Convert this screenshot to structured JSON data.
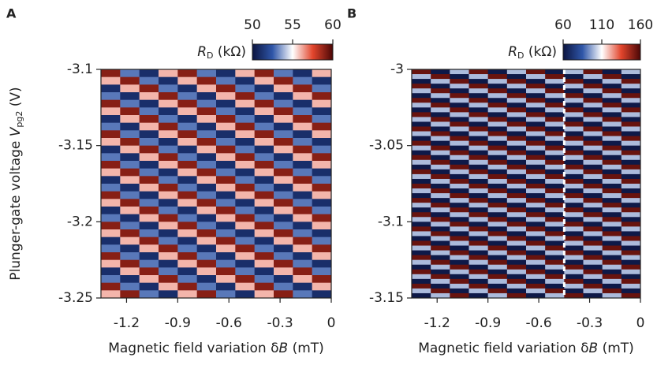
{
  "chart_data": [
    {
      "type": "heatmap",
      "panel": "A",
      "xlabel": "Magnetic field variation δ",
      "xlabel_italic": "B",
      "xlabel_unit": " (mT)",
      "ylabel": "Plunger-gate voltage ",
      "ylabel_italic": "V",
      "ylabel_sub": "pg2",
      "ylabel_unit": " (V)",
      "colorbar_label": "R",
      "colorbar_label_sub": "D",
      "colorbar_unit": " (kΩ)",
      "xlim": [
        -1.35,
        0
      ],
      "xticks": [
        -1.2,
        -0.9,
        -0.6,
        -0.3,
        0
      ],
      "ylim": [
        -3.25,
        -3.1
      ],
      "yticks": [
        -3.1,
        -3.15,
        -3.2,
        -3.25
      ],
      "clim": [
        50,
        60
      ],
      "cticks": [
        50,
        55,
        60
      ],
      "colormap": [
        "#0b1440",
        "#2f56a8",
        "#ffffff",
        "#e2452c",
        "#4a0606"
      ],
      "z": [
        [
          59,
          53,
          51,
          56,
          59,
          53,
          51,
          56,
          59,
          53,
          51,
          56
        ],
        [
          56,
          59,
          53,
          51,
          56,
          59,
          53,
          51,
          56,
          59,
          53,
          51
        ],
        [
          51,
          56,
          59,
          53,
          51,
          56,
          59,
          53,
          51,
          56,
          59,
          53
        ],
        [
          53,
          51,
          56,
          59,
          53,
          51,
          56,
          59,
          53,
          51,
          56,
          59
        ],
        [
          59,
          53,
          51,
          56,
          59,
          53,
          51,
          56,
          59,
          53,
          51,
          56
        ],
        [
          56,
          59,
          53,
          51,
          56,
          59,
          53,
          51,
          56,
          59,
          53,
          51
        ],
        [
          51,
          56,
          59,
          53,
          51,
          56,
          59,
          53,
          51,
          56,
          59,
          53
        ],
        [
          53,
          51,
          56,
          59,
          53,
          51,
          56,
          59,
          53,
          51,
          56,
          59
        ],
        [
          59,
          53,
          51,
          56,
          59,
          53,
          51,
          56,
          59,
          53,
          51,
          56
        ],
        [
          56,
          59,
          53,
          51,
          56,
          59,
          53,
          51,
          56,
          59,
          53,
          51
        ],
        [
          51,
          56,
          59,
          53,
          51,
          56,
          59,
          53,
          51,
          56,
          59,
          53
        ],
        [
          53,
          51,
          56,
          59,
          53,
          51,
          56,
          59,
          53,
          51,
          56,
          59
        ],
        [
          59,
          53,
          51,
          56,
          59,
          53,
          51,
          56,
          59,
          53,
          51,
          56
        ],
        [
          56,
          59,
          53,
          51,
          56,
          59,
          53,
          51,
          56,
          59,
          53,
          51
        ],
        [
          51,
          56,
          59,
          53,
          51,
          56,
          59,
          53,
          51,
          56,
          59,
          53
        ],
        [
          53,
          51,
          56,
          59,
          53,
          51,
          56,
          59,
          53,
          51,
          56,
          59
        ],
        [
          59,
          53,
          51,
          56,
          59,
          53,
          51,
          56,
          59,
          53,
          51,
          56
        ],
        [
          56,
          59,
          53,
          51,
          56,
          59,
          53,
          51,
          56,
          59,
          53,
          51
        ],
        [
          51,
          56,
          59,
          53,
          51,
          56,
          59,
          53,
          51,
          56,
          59,
          53
        ],
        [
          53,
          51,
          56,
          59,
          53,
          51,
          56,
          59,
          53,
          51,
          56,
          59
        ],
        [
          59,
          53,
          51,
          56,
          59,
          53,
          51,
          56,
          59,
          53,
          51,
          56
        ],
        [
          56,
          59,
          53,
          51,
          56,
          59,
          53,
          51,
          56,
          59,
          53,
          51
        ],
        [
          51,
          56,
          59,
          53,
          51,
          56,
          59,
          53,
          51,
          56,
          59,
          53
        ],
        [
          53,
          51,
          56,
          59,
          53,
          51,
          56,
          59,
          53,
          51,
          56,
          59
        ],
        [
          59,
          53,
          51,
          56,
          59,
          53,
          51,
          56,
          59,
          53,
          51,
          56
        ],
        [
          56,
          59,
          53,
          51,
          56,
          59,
          53,
          51,
          56,
          59,
          53,
          51
        ],
        [
          51,
          56,
          59,
          53,
          51,
          56,
          59,
          53,
          51,
          56,
          59,
          53
        ],
        [
          53,
          51,
          56,
          59,
          53,
          51,
          56,
          59,
          53,
          51,
          56,
          59
        ],
        [
          59,
          53,
          51,
          56,
          59,
          53,
          51,
          56,
          59,
          53,
          51,
          56
        ],
        [
          56,
          59,
          53,
          51,
          56,
          59,
          53,
          51,
          56,
          59,
          53,
          51
        ]
      ]
    },
    {
      "type": "heatmap",
      "panel": "B",
      "xlabel": "Magnetic field variation δ",
      "xlabel_italic": "B",
      "xlabel_unit": " (mT)",
      "colorbar_label": "R",
      "colorbar_label_sub": "D",
      "colorbar_unit": " (kΩ)",
      "xlim": [
        -1.35,
        0
      ],
      "xticks": [
        -1.2,
        -0.9,
        -0.6,
        -0.3,
        0
      ],
      "ylim": [
        -3.15,
        -3
      ],
      "yticks": [
        -3,
        -3.05,
        -3.1,
        -3.15
      ],
      "clim": [
        60,
        160
      ],
      "cticks": [
        60,
        110,
        160
      ],
      "colormap": [
        "#0b1440",
        "#2f56a8",
        "#ffffff",
        "#e2452c",
        "#4a0606"
      ],
      "marker_x": -0.45,
      "z": [
        [
          155,
          62,
          100,
          155,
          62,
          100,
          155,
          62,
          100,
          155,
          62,
          100
        ],
        [
          100,
          155,
          62,
          100,
          155,
          62,
          100,
          155,
          62,
          100,
          155,
          62
        ],
        [
          62,
          100,
          155,
          62,
          100,
          155,
          62,
          100,
          155,
          62,
          100,
          155
        ],
        [
          155,
          62,
          100,
          155,
          62,
          100,
          155,
          62,
          100,
          155,
          62,
          100
        ],
        [
          100,
          155,
          62,
          100,
          155,
          62,
          100,
          155,
          62,
          100,
          155,
          62
        ],
        [
          62,
          100,
          155,
          62,
          100,
          155,
          62,
          100,
          155,
          62,
          100,
          155
        ],
        [
          155,
          62,
          100,
          155,
          62,
          100,
          155,
          62,
          100,
          155,
          62,
          100
        ],
        [
          100,
          155,
          62,
          100,
          155,
          62,
          100,
          155,
          62,
          100,
          155,
          62
        ],
        [
          62,
          100,
          155,
          62,
          100,
          155,
          62,
          100,
          155,
          62,
          100,
          155
        ],
        [
          155,
          62,
          100,
          155,
          62,
          100,
          155,
          62,
          100,
          155,
          62,
          100
        ],
        [
          100,
          155,
          62,
          100,
          155,
          62,
          100,
          155,
          62,
          100,
          155,
          62
        ],
        [
          62,
          100,
          155,
          62,
          100,
          155,
          62,
          100,
          155,
          62,
          100,
          155
        ],
        [
          155,
          62,
          100,
          155,
          62,
          100,
          155,
          62,
          100,
          155,
          62,
          100
        ],
        [
          100,
          155,
          62,
          100,
          155,
          62,
          100,
          155,
          62,
          100,
          155,
          62
        ],
        [
          62,
          100,
          155,
          62,
          100,
          155,
          62,
          100,
          155,
          62,
          100,
          155
        ],
        [
          155,
          62,
          100,
          155,
          62,
          100,
          155,
          62,
          100,
          155,
          62,
          100
        ],
        [
          100,
          155,
          62,
          100,
          155,
          62,
          100,
          155,
          62,
          100,
          155,
          62
        ],
        [
          62,
          100,
          155,
          62,
          100,
          155,
          62,
          100,
          155,
          62,
          100,
          155
        ],
        [
          155,
          62,
          100,
          155,
          62,
          100,
          155,
          62,
          100,
          155,
          62,
          100
        ],
        [
          100,
          155,
          62,
          100,
          155,
          62,
          100,
          155,
          62,
          100,
          155,
          62
        ],
        [
          62,
          100,
          155,
          62,
          100,
          155,
          62,
          100,
          155,
          62,
          100,
          155
        ],
        [
          155,
          62,
          100,
          155,
          62,
          100,
          155,
          62,
          100,
          155,
          62,
          100
        ],
        [
          100,
          155,
          62,
          100,
          155,
          62,
          100,
          155,
          62,
          100,
          155,
          62
        ],
        [
          62,
          100,
          155,
          62,
          100,
          155,
          62,
          100,
          155,
          62,
          100,
          155
        ],
        [
          155,
          62,
          100,
          155,
          62,
          100,
          155,
          62,
          100,
          155,
          62,
          100
        ],
        [
          100,
          155,
          62,
          100,
          155,
          62,
          100,
          155,
          62,
          100,
          155,
          62
        ],
        [
          62,
          100,
          155,
          62,
          100,
          155,
          62,
          100,
          155,
          62,
          100,
          155
        ],
        [
          155,
          62,
          100,
          155,
          62,
          100,
          155,
          62,
          100,
          155,
          62,
          100
        ],
        [
          100,
          155,
          62,
          100,
          155,
          62,
          100,
          155,
          62,
          100,
          155,
          62
        ],
        [
          62,
          100,
          155,
          62,
          100,
          155,
          62,
          100,
          155,
          62,
          100,
          155
        ],
        [
          155,
          62,
          100,
          155,
          62,
          100,
          155,
          62,
          100,
          155,
          62,
          100
        ],
        [
          100,
          155,
          62,
          100,
          155,
          62,
          100,
          155,
          62,
          100,
          155,
          62
        ],
        [
          62,
          100,
          155,
          62,
          100,
          155,
          62,
          100,
          155,
          62,
          100,
          155
        ],
        [
          155,
          62,
          100,
          155,
          62,
          100,
          155,
          62,
          100,
          155,
          62,
          100
        ],
        [
          100,
          155,
          62,
          100,
          155,
          62,
          100,
          155,
          62,
          100,
          155,
          62
        ],
        [
          62,
          100,
          155,
          62,
          100,
          155,
          62,
          100,
          155,
          62,
          100,
          155
        ],
        [
          155,
          62,
          100,
          155,
          62,
          100,
          155,
          62,
          100,
          155,
          62,
          100
        ],
        [
          100,
          155,
          62,
          100,
          155,
          62,
          100,
          155,
          62,
          100,
          155,
          62
        ],
        [
          62,
          100,
          155,
          62,
          100,
          155,
          62,
          100,
          155,
          62,
          100,
          155
        ],
        [
          155,
          62,
          100,
          155,
          62,
          100,
          155,
          62,
          100,
          155,
          62,
          100
        ],
        [
          100,
          155,
          62,
          100,
          155,
          62,
          100,
          155,
          62,
          100,
          155,
          62
        ],
        [
          62,
          100,
          155,
          62,
          100,
          155,
          62,
          100,
          155,
          62,
          100,
          155
        ],
        [
          155,
          62,
          100,
          155,
          62,
          100,
          155,
          62,
          100,
          155,
          62,
          100
        ],
        [
          100,
          155,
          62,
          100,
          155,
          62,
          100,
          155,
          62,
          100,
          155,
          62
        ],
        [
          62,
          100,
          155,
          62,
          100,
          155,
          62,
          100,
          155,
          62,
          100,
          155
        ],
        [
          155,
          62,
          100,
          155,
          62,
          100,
          155,
          62,
          100,
          155,
          62,
          100
        ],
        [
          100,
          155,
          62,
          100,
          155,
          62,
          100,
          155,
          62,
          100,
          155,
          62
        ],
        [
          62,
          100,
          155,
          62,
          100,
          155,
          62,
          100,
          155,
          62,
          100,
          155
        ]
      ]
    }
  ]
}
